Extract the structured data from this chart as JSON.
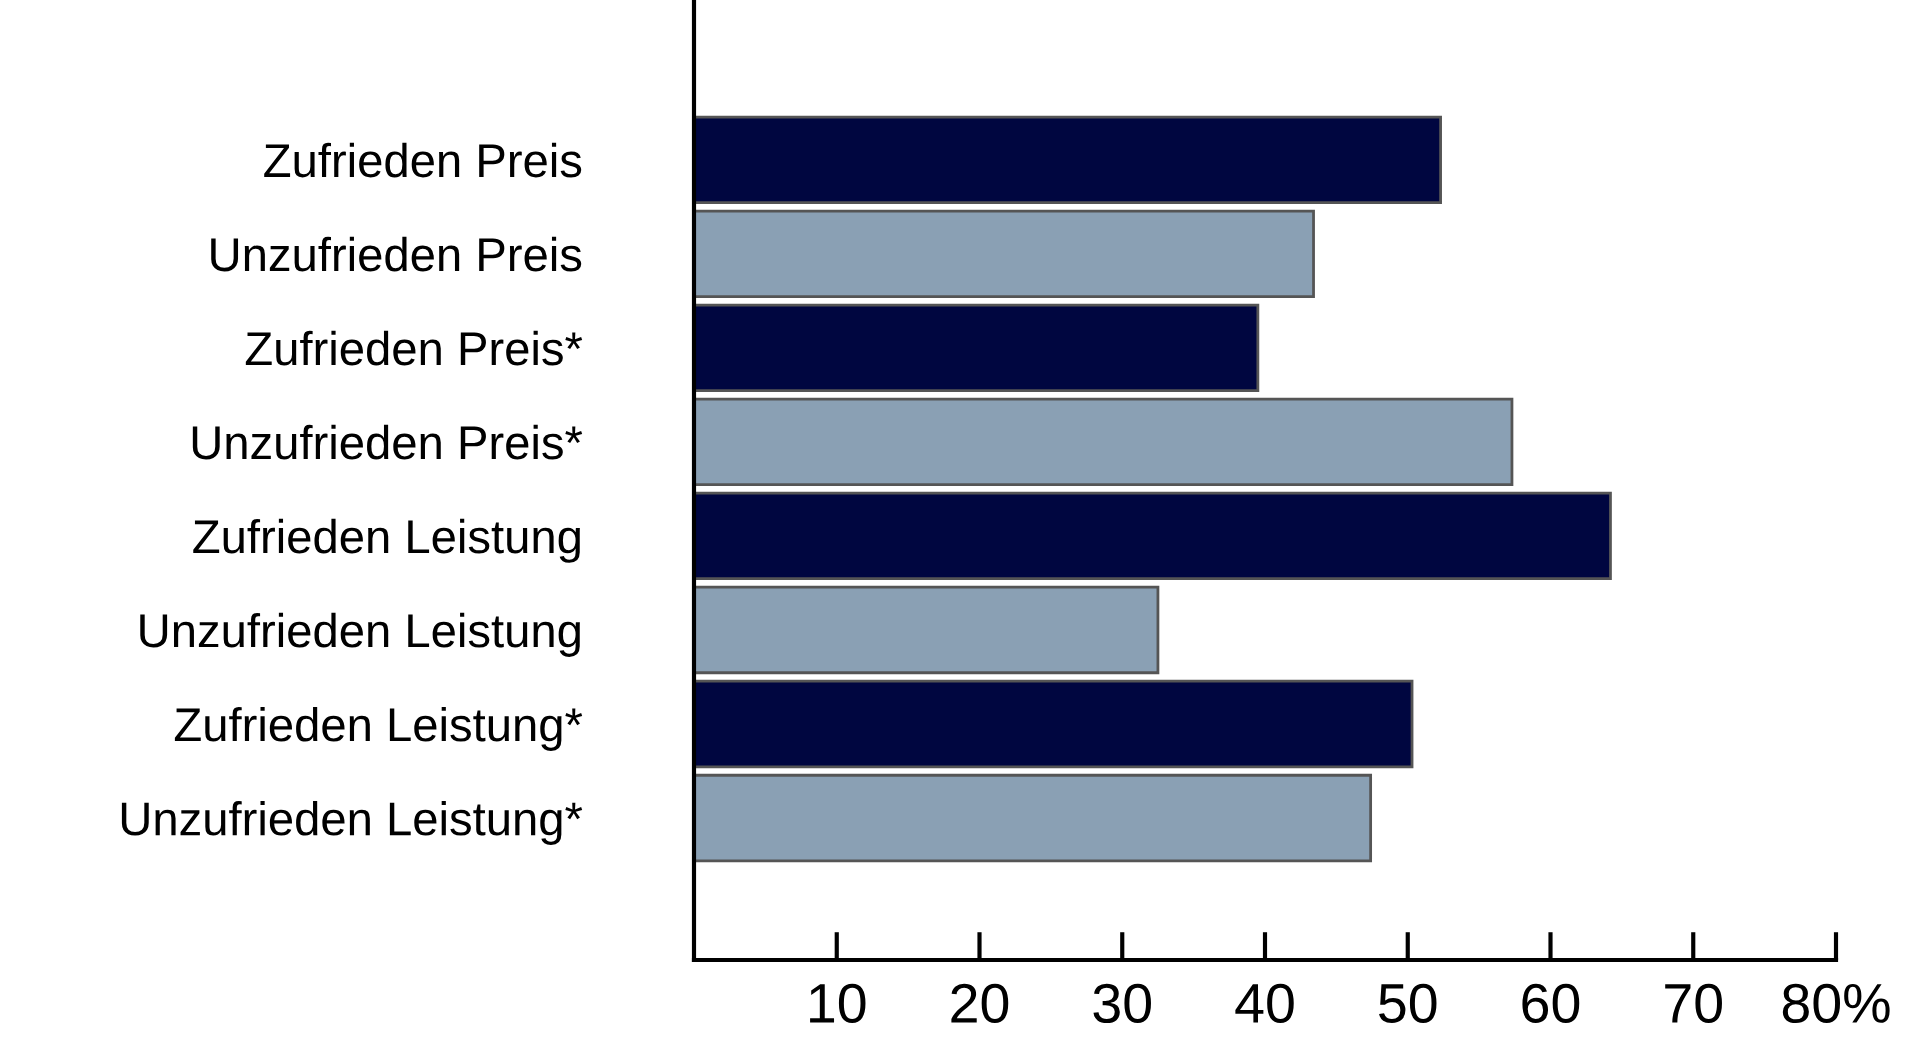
{
  "chart_data": {
    "type": "bar",
    "orientation": "horizontal",
    "categories": [
      "Zufrieden Preis",
      "Unzufrieden Preis",
      "Zufrieden Preis*",
      "Unzufrieden Preis*",
      "Zufrieden Leistung",
      "Unzufrieden Leistung",
      "Zufrieden Leistung*",
      "Unzufrieden Leistung*"
    ],
    "values": [
      52.3,
      43.4,
      39.5,
      57.3,
      64.2,
      32.5,
      50.3,
      47.4
    ],
    "colors": [
      "#000640",
      "#8aa0b4",
      "#000640",
      "#8aa0b4",
      "#000640",
      "#8aa0b4",
      "#000640",
      "#8aa0b4"
    ],
    "xlim": [
      0,
      80
    ],
    "xticks": [
      10,
      20,
      30,
      40,
      50,
      60,
      70,
      {
        "value": 80,
        "label": "80%"
      }
    ],
    "grid": false,
    "legend": false
  }
}
